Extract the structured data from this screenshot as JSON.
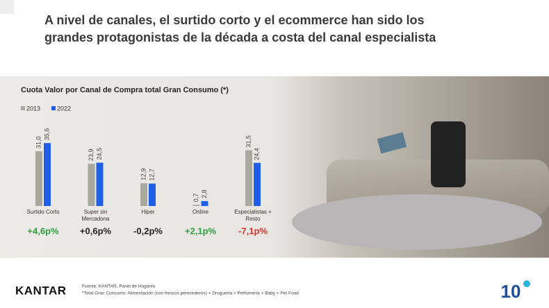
{
  "header": {
    "title": "A nivel de canales, el surtido corto y el ecommerce han sido los grandes protagonistas de la década a costa del canal especialista"
  },
  "chart_data": {
    "type": "bar",
    "title": "Cuota Valor por Canal de Compra total Gran Consumo (*)",
    "categories": [
      "Surtido Corto",
      "Super sin Mercadona",
      "Hiper",
      "Online",
      "Especialistas + Resto"
    ],
    "series": [
      {
        "name": "2013",
        "color": "#a9a89f",
        "values": [
          31.0,
          23.9,
          12.9,
          0.7,
          31.5
        ],
        "value_labels": [
          "31,0",
          "23,9",
          "12,9",
          "0,7",
          "31,5"
        ]
      },
      {
        "name": "2022",
        "color": "#1f5fe8",
        "values": [
          35.6,
          24.5,
          12.7,
          2.8,
          24.4
        ],
        "value_labels": [
          "35,6",
          "24,5",
          "12,7",
          "2,8",
          "24,4"
        ]
      }
    ],
    "annotations": [
      {
        "text": "+4,6p%",
        "color": "#2f9e3c"
      },
      {
        "text": "+0,6p%",
        "color": "#222222"
      },
      {
        "text": "-0,2p%",
        "color": "#222222"
      },
      {
        "text": "+2,1p%",
        "color": "#2f9e3c"
      },
      {
        "text": "-7,1p%",
        "color": "#e0302a"
      }
    ]
  },
  "footer": {
    "brand": "KANTAR",
    "source": "Fuente: KANTAR, Panel de Hogares",
    "note": "*Total Gran Consumo: Alimentación (con frescos perecederos) + Droguería + Perfumería  + Baby + Pet Food",
    "badge": "10"
  }
}
